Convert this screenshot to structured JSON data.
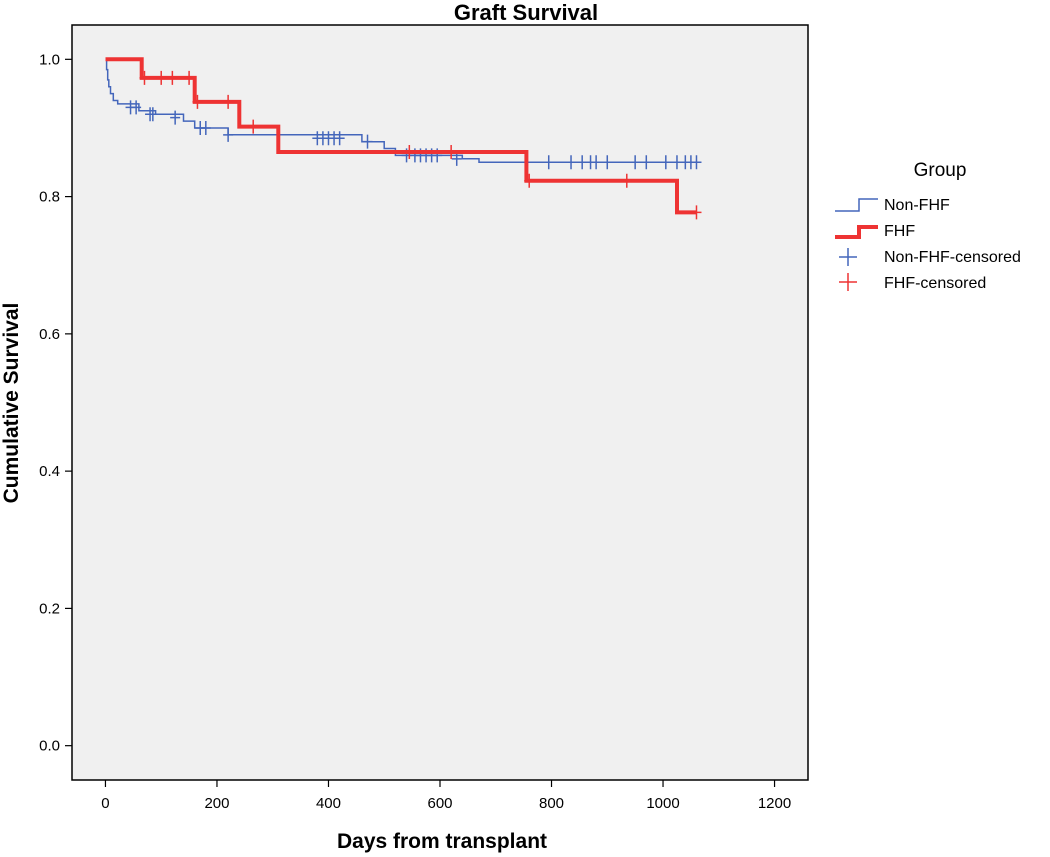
{
  "chart_data": {
    "type": "line",
    "subtype": "kaplan-meier",
    "title": "Graft Survival",
    "xlabel": "Days from transplant",
    "ylabel": "Cumulative Survival",
    "xlim": [
      -60,
      1260
    ],
    "ylim": [
      -0.05,
      1.05
    ],
    "xticks": [
      0,
      200,
      400,
      600,
      800,
      1000,
      1200
    ],
    "yticks": [
      0.0,
      0.2,
      0.4,
      0.6,
      0.8,
      1.0
    ],
    "xtick_labels": [
      "0",
      "200",
      "400",
      "600",
      "800",
      "1000",
      "1200"
    ],
    "ytick_labels": [
      "0.0",
      "0.2",
      "0.4",
      "0.6",
      "0.8",
      "1.0"
    ],
    "grid": false,
    "legend": {
      "title": "Group",
      "position": "right",
      "entries": [
        "Non-FHF",
        "FHF",
        "Non-FHF-censored",
        "FHF-censored"
      ]
    },
    "series": [
      {
        "name": "Non-FHF",
        "color": "#4466bb",
        "steps": [
          [
            0,
            1.0
          ],
          [
            2,
            0.985
          ],
          [
            4,
            0.97
          ],
          [
            6,
            0.96
          ],
          [
            9,
            0.95
          ],
          [
            14,
            0.94
          ],
          [
            22,
            0.935
          ],
          [
            60,
            0.925
          ],
          [
            90,
            0.92
          ],
          [
            140,
            0.91
          ],
          [
            160,
            0.9
          ],
          [
            220,
            0.89
          ],
          [
            460,
            0.88
          ],
          [
            500,
            0.87
          ],
          [
            520,
            0.86
          ],
          [
            640,
            0.855
          ],
          [
            670,
            0.85
          ],
          [
            1060,
            0.85
          ]
        ],
        "censored": [
          [
            45,
            0.93
          ],
          [
            55,
            0.93
          ],
          [
            80,
            0.92
          ],
          [
            85,
            0.92
          ],
          [
            125,
            0.915
          ],
          [
            170,
            0.9
          ],
          [
            180,
            0.9
          ],
          [
            220,
            0.89
          ],
          [
            380,
            0.885
          ],
          [
            390,
            0.885
          ],
          [
            400,
            0.885
          ],
          [
            410,
            0.885
          ],
          [
            420,
            0.885
          ],
          [
            470,
            0.88
          ],
          [
            540,
            0.86
          ],
          [
            555,
            0.86
          ],
          [
            565,
            0.86
          ],
          [
            575,
            0.86
          ],
          [
            585,
            0.86
          ],
          [
            595,
            0.86
          ],
          [
            630,
            0.855
          ],
          [
            755,
            0.85
          ],
          [
            795,
            0.85
          ],
          [
            835,
            0.85
          ],
          [
            855,
            0.85
          ],
          [
            870,
            0.85
          ],
          [
            880,
            0.85
          ],
          [
            900,
            0.85
          ],
          [
            950,
            0.85
          ],
          [
            970,
            0.85
          ],
          [
            1005,
            0.85
          ],
          [
            1025,
            0.85
          ],
          [
            1040,
            0.85
          ],
          [
            1050,
            0.85
          ],
          [
            1060,
            0.85
          ]
        ]
      },
      {
        "name": "FHF",
        "color": "#ee3333",
        "steps": [
          [
            0,
            1.0
          ],
          [
            65,
            1.0
          ],
          [
            65,
            0.973
          ],
          [
            160,
            0.973
          ],
          [
            160,
            0.938
          ],
          [
            240,
            0.938
          ],
          [
            240,
            0.902
          ],
          [
            310,
            0.902
          ],
          [
            310,
            0.865
          ],
          [
            755,
            0.865
          ],
          [
            755,
            0.823
          ],
          [
            1025,
            0.823
          ],
          [
            1025,
            0.777
          ],
          [
            1060,
            0.777
          ]
        ],
        "censored": [
          [
            70,
            0.973
          ],
          [
            100,
            0.973
          ],
          [
            120,
            0.973
          ],
          [
            150,
            0.973
          ],
          [
            165,
            0.938
          ],
          [
            220,
            0.938
          ],
          [
            265,
            0.902
          ],
          [
            545,
            0.865
          ],
          [
            620,
            0.865
          ],
          [
            760,
            0.823
          ],
          [
            935,
            0.823
          ],
          [
            1060,
            0.777
          ]
        ]
      }
    ]
  }
}
